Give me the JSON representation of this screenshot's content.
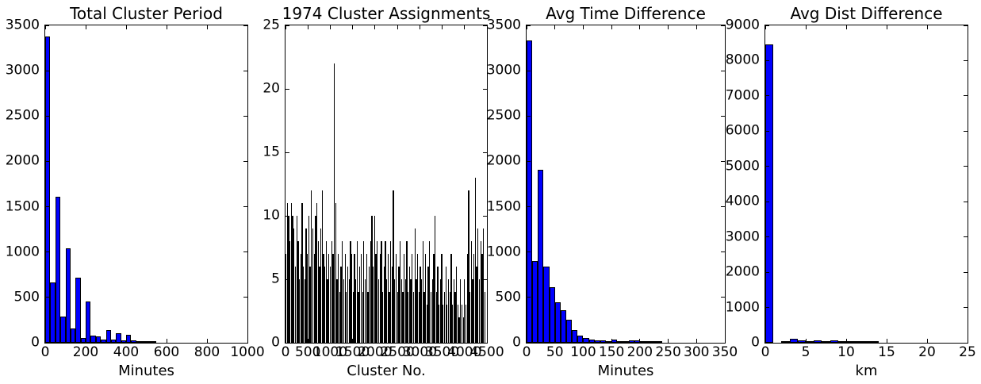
{
  "figure": {
    "background": "#ffffff",
    "axes_edge_color": "#000000",
    "tick_direction": "in"
  },
  "chart_data": [
    {
      "type": "bar",
      "title": "Total Cluster Period",
      "xlabel": "Minutes",
      "ylabel": "",
      "xlim": [
        0,
        1000
      ],
      "ylim": [
        0,
        3500
      ],
      "xticks": [
        0,
        200,
        400,
        600,
        800,
        1000
      ],
      "yticks": [
        0,
        500,
        1000,
        1500,
        2000,
        2500,
        3000,
        3500
      ],
      "bar_color": "#0000ff",
      "edge_color": "#000000",
      "bin_start": 0,
      "bin_width": 25,
      "values": [
        3380,
        665,
        1610,
        292,
        1040,
        155,
        720,
        50,
        458,
        82,
        67,
        38,
        143,
        38,
        105,
        28,
        90,
        30,
        8,
        15,
        15,
        12
      ]
    },
    {
      "type": "bar",
      "title": "1974 Cluster Assignments",
      "xlabel": "Cluster No.",
      "ylabel": "",
      "xlim": [
        0,
        4500
      ],
      "ylim": [
        0,
        25
      ],
      "xticks": [
        0,
        500,
        1000,
        1500,
        2000,
        2500,
        3000,
        3500,
        4000,
        4500
      ],
      "yticks": [
        0,
        5,
        10,
        15,
        20,
        25
      ],
      "bar_color": "#000000",
      "edge_color": "#000000",
      "bin_start": 0,
      "bin_width": 30,
      "values": [
        7,
        11,
        10,
        8,
        11,
        10,
        9,
        6,
        10,
        8,
        5,
        7,
        11,
        6,
        5,
        9,
        7,
        10,
        6,
        12,
        9,
        7,
        10,
        11,
        8,
        6,
        9,
        12,
        7,
        6,
        8,
        5,
        7,
        6,
        8,
        7,
        22,
        11,
        5,
        7,
        4,
        6,
        8,
        5,
        7,
        4,
        6,
        5,
        8,
        7,
        4,
        7,
        5,
        8,
        4,
        6,
        7,
        4,
        8,
        5,
        7,
        4,
        6,
        8,
        10,
        6,
        10,
        7,
        8,
        5,
        7,
        8,
        4,
        6,
        8,
        5,
        7,
        4,
        8,
        6,
        12,
        5,
        7,
        4,
        6,
        8,
        5,
        4,
        7,
        5,
        8,
        4,
        6,
        5,
        7,
        4,
        9,
        5,
        7,
        4,
        6,
        5,
        8,
        4,
        7,
        3,
        6,
        8,
        4,
        5,
        7,
        10,
        4,
        6,
        3,
        5,
        7,
        3,
        4,
        6,
        3,
        5,
        4,
        7,
        3,
        5,
        4,
        6,
        3,
        2,
        5,
        3,
        2,
        5,
        3,
        7,
        12,
        4,
        8,
        5,
        7,
        13,
        6,
        9,
        5,
        8,
        7,
        9,
        4,
        0
      ]
    },
    {
      "type": "bar",
      "title": "Avg Time Difference",
      "xlabel": "Minutes",
      "ylabel": "",
      "xlim": [
        0,
        350
      ],
      "ylim": [
        0,
        3500
      ],
      "xticks": [
        0,
        50,
        100,
        150,
        200,
        250,
        300,
        350
      ],
      "yticks": [
        0,
        500,
        1000,
        1500,
        2000,
        2500,
        3000,
        3500
      ],
      "bar_color": "#0000ff",
      "edge_color": "#000000",
      "bin_start": 0,
      "bin_width": 10,
      "values": [
        3330,
        900,
        1910,
        840,
        610,
        450,
        355,
        255,
        140,
        80,
        55,
        35,
        30,
        25,
        15,
        35,
        10,
        5,
        30,
        28,
        5,
        3,
        2,
        12
      ]
    },
    {
      "type": "bar",
      "title": "Avg Dist Difference",
      "xlabel": "km",
      "ylabel": "",
      "xlim": [
        0,
        25
      ],
      "ylim": [
        0,
        9000
      ],
      "xticks": [
        0,
        5,
        10,
        15,
        20,
        25
      ],
      "yticks": [
        0,
        1000,
        2000,
        3000,
        4000,
        5000,
        6000,
        7000,
        8000,
        9000
      ],
      "bar_color": "#0000ff",
      "edge_color": "#000000",
      "bin_start": 0,
      "bin_width": 1,
      "values": [
        8460,
        0,
        30,
        105,
        75,
        45,
        60,
        45,
        75,
        30,
        45,
        20,
        15,
        10
      ]
    }
  ]
}
